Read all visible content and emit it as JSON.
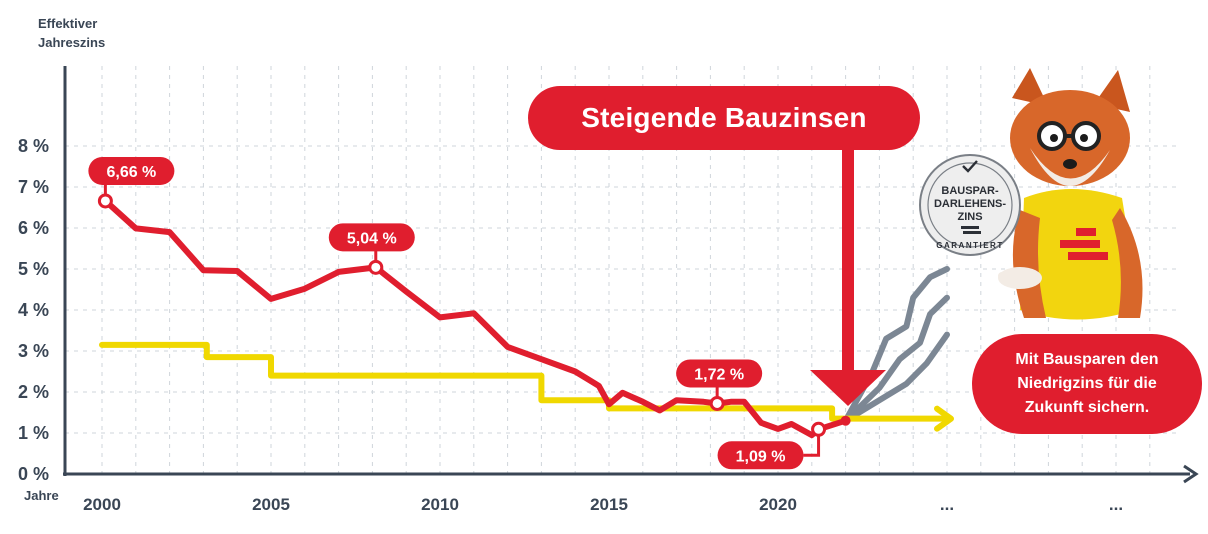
{
  "yaxis_title": [
    "Effektiver",
    "Jahreszins"
  ],
  "xaxis_title": "Jahre",
  "banner": "Steigende Bauzinsen",
  "slogan": [
    "Mit Bausparen den",
    "Niedrigzins für die",
    "Zukunft sichern."
  ],
  "seal": {
    "text": "BAUSPAR-DARLEHENS-ZINS GARANTIERT",
    "lines": [
      "BAUSPAR-",
      "DARLEHENS-",
      "ZINS"
    ],
    "ring": "GARANTIERT"
  },
  "colors": {
    "red": "#e01e2e",
    "yellow": "#f0d800",
    "gray": "#7c8794",
    "axis": "#3a4655",
    "grid": "#cfd5db"
  },
  "icons": [
    "fox-mascot-icon",
    "checkmark-icon",
    "seal-badge-icon",
    "arrow-down-icon",
    "arrow-right-icon"
  ],
  "chart_data": {
    "type": "line",
    "ylim": [
      0,
      8
    ],
    "yticks": [
      "0 %",
      "1 %",
      "2 %",
      "3 %",
      "4 %",
      "5 %",
      "6 %",
      "7 %",
      "8 %"
    ],
    "xticks": [
      "2000",
      "2005",
      "2010",
      "2015",
      "2020",
      "...",
      "..."
    ],
    "series": [
      {
        "color": "#e01e2e",
        "x": [
          2000.1,
          2001.0,
          2002.0,
          2003.0,
          2004.0,
          2005.0,
          2006.0,
          2007.0,
          2008.1,
          2009.0,
          2010.0,
          2011.0,
          2012.0,
          2013.0,
          2014.0,
          2014.7,
          2015.0,
          2015.4,
          2016.0,
          2016.5,
          2017.0,
          2017.8,
          2018.2,
          2018.6,
          2019.0,
          2019.5,
          2020.0,
          2020.4,
          2021.0,
          2021.2,
          2022.0
        ],
        "y": [
          6.66,
          5.99,
          5.9,
          4.97,
          4.95,
          4.27,
          4.52,
          4.93,
          5.04,
          4.45,
          3.82,
          3.92,
          3.1,
          2.8,
          2.5,
          2.15,
          1.7,
          1.98,
          1.76,
          1.55,
          1.8,
          1.76,
          1.72,
          1.76,
          1.76,
          1.25,
          1.1,
          1.22,
          0.95,
          1.09,
          1.3
        ]
      },
      {
        "color": "#f0d800",
        "x": [
          2000.0,
          2003.1,
          2003.1,
          2005.0,
          2005.0,
          2013.0,
          2013.0,
          2015.0,
          2015.0,
          2021.6,
          2021.6,
          2025.0
        ],
        "y": [
          3.15,
          3.15,
          2.85,
          2.85,
          2.4,
          2.4,
          1.8,
          1.8,
          1.6,
          1.6,
          1.35,
          1.35
        ]
      },
      {
        "color": "#7c8794",
        "x": [
          2022.0,
          2022.8,
          2023.2,
          2023.8,
          2024.0,
          2024.5,
          2025.0
        ],
        "y": [
          1.3,
          2.5,
          3.3,
          3.6,
          4.3,
          4.8,
          5.0
        ]
      },
      {
        "color": "#7c8794",
        "x": [
          2022.0,
          2023.0,
          2023.6,
          2024.2,
          2024.5,
          2025.0
        ],
        "y": [
          1.3,
          2.1,
          2.8,
          3.2,
          3.9,
          4.3
        ]
      },
      {
        "color": "#7c8794",
        "x": [
          2022.0,
          2023.0,
          2023.8,
          2024.4,
          2025.0
        ],
        "y": [
          1.3,
          1.8,
          2.2,
          2.7,
          3.4
        ]
      }
    ],
    "annotations": [
      {
        "label": "6,66 %",
        "x": 2000.1,
        "y": 6.66
      },
      {
        "label": "5,04 %",
        "x": 2008.1,
        "y": 5.04
      },
      {
        "label": "1,72 %",
        "x": 2018.2,
        "y": 1.72
      },
      {
        "label": "1,09 %",
        "x": 2021.2,
        "y": 1.09
      }
    ]
  }
}
